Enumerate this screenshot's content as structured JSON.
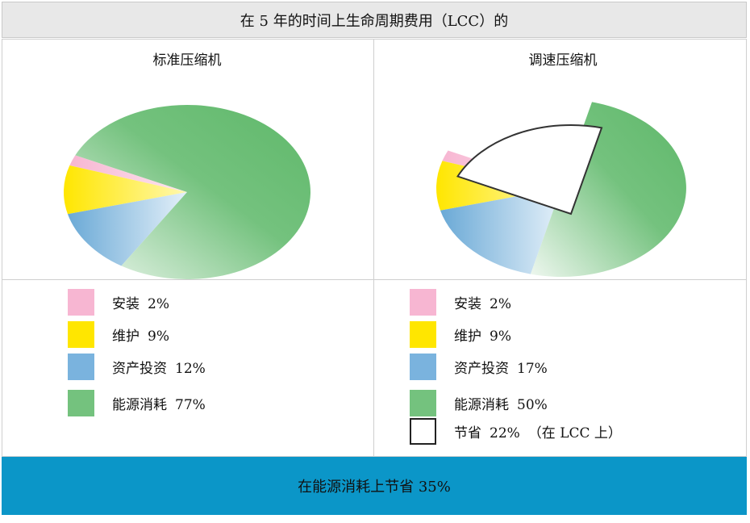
{
  "header": {
    "title": "在 5 年的时间上生命周期费用（LCC）的"
  },
  "footer": {
    "text": "在能源消耗上节省 35%"
  },
  "colors": {
    "install": "#f7b6d2",
    "maintenance": "#ffe600",
    "capital": "#7ab3de",
    "energy": "#74c27e",
    "savings": "#ffffff"
  },
  "chart_data": [
    {
      "type": "pie",
      "title": "标准压缩机",
      "categories": [
        "安装",
        "维护",
        "资产投资",
        "能源消耗"
      ],
      "values": [
        2,
        9,
        12,
        77
      ],
      "legend": [
        {
          "label": "安装",
          "value": "2%"
        },
        {
          "label": "维护",
          "value": "9%"
        },
        {
          "label": "资产投资",
          "value": "12%"
        },
        {
          "label": "能源消耗",
          "value": "77%"
        }
      ]
    },
    {
      "type": "pie",
      "title": "调速压缩机",
      "categories": [
        "安装",
        "维护",
        "资产投资",
        "能源消耗",
        "节省"
      ],
      "values": [
        2,
        9,
        17,
        50,
        22
      ],
      "exploded": "节省",
      "legend": [
        {
          "label": "安装",
          "value": "2%"
        },
        {
          "label": "维护",
          "value": "9%"
        },
        {
          "label": "资产投资",
          "value": "17%"
        },
        {
          "label": "能源消耗",
          "value": "50%"
        },
        {
          "label": "节省",
          "value": "22%",
          "note": "（在 LCC 上）"
        }
      ]
    }
  ]
}
